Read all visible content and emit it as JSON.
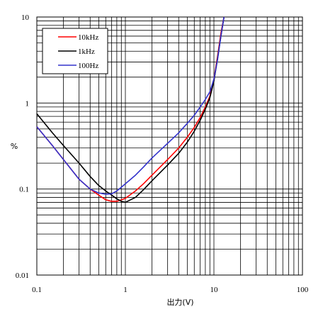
{
  "chart_data": {
    "type": "line",
    "title": "",
    "xlabel": "出力(V)",
    "ylabel": "%",
    "x_scale": "log",
    "y_scale": "log",
    "xlim": [
      0.1,
      100
    ],
    "ylim": [
      0.01,
      10
    ],
    "grid": true,
    "legend_position": "top-left",
    "x_ticks": [
      "0.1",
      "1",
      "10",
      "100"
    ],
    "y_ticks": [
      "0.01",
      "0.1",
      "1",
      "10"
    ],
    "series": [
      {
        "name": "10kHz",
        "color": "#ff0000",
        "x": [
          0.1,
          0.15,
          0.2,
          0.3,
          0.4,
          0.5,
          0.6,
          0.7,
          0.8,
          0.9,
          1.0,
          1.3,
          1.6,
          2.0,
          3.0,
          4.0,
          5.0,
          6.0,
          7.0,
          8.0,
          9.0,
          10.0,
          11.0,
          12.0,
          13.0
        ],
        "y": [
          0.53,
          0.32,
          0.22,
          0.13,
          0.1,
          0.085,
          0.075,
          0.072,
          0.072,
          0.075,
          0.078,
          0.095,
          0.115,
          0.145,
          0.22,
          0.3,
          0.4,
          0.52,
          0.68,
          0.9,
          1.2,
          1.9,
          3.5,
          6.5,
          10
        ]
      },
      {
        "name": "1kHz",
        "color": "#000000",
        "x": [
          0.1,
          0.15,
          0.2,
          0.3,
          0.4,
          0.5,
          0.6,
          0.7,
          0.8,
          0.9,
          1.0,
          1.3,
          1.6,
          2.0,
          3.0,
          4.0,
          5.0,
          6.0,
          7.0,
          8.0,
          9.0,
          10.0,
          11.0,
          12.0,
          13.0
        ],
        "y": [
          0.75,
          0.45,
          0.32,
          0.2,
          0.14,
          0.11,
          0.095,
          0.085,
          0.077,
          0.072,
          0.07,
          0.08,
          0.098,
          0.125,
          0.19,
          0.26,
          0.35,
          0.47,
          0.63,
          0.85,
          1.15,
          1.8,
          3.3,
          6.0,
          10
        ]
      },
      {
        "name": "100Hz",
        "color": "#3333cc",
        "x": [
          0.1,
          0.15,
          0.2,
          0.3,
          0.4,
          0.5,
          0.6,
          0.7,
          0.8,
          0.9,
          1.0,
          1.3,
          1.6,
          2.0,
          3.0,
          4.0,
          5.0,
          6.0,
          7.0,
          8.0,
          9.0,
          10.0,
          11.0,
          12.0,
          13.0
        ],
        "y": [
          0.53,
          0.32,
          0.22,
          0.13,
          0.1,
          0.09,
          0.087,
          0.088,
          0.095,
          0.105,
          0.115,
          0.145,
          0.18,
          0.23,
          0.34,
          0.45,
          0.58,
          0.72,
          0.9,
          1.1,
          1.35,
          1.9,
          3.2,
          6.0,
          10
        ]
      }
    ]
  }
}
